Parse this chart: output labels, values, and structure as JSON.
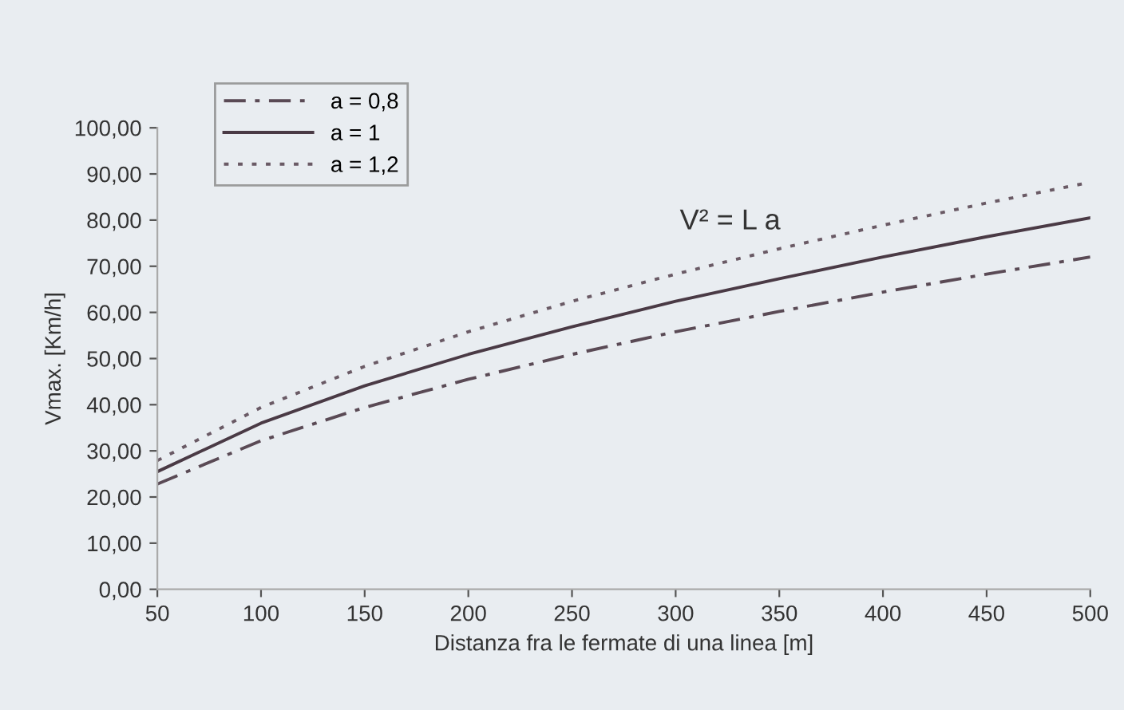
{
  "chart_data": {
    "type": "line",
    "xlabel": "Distanza fra le fermate di una linea [m]",
    "ylabel": "Vmax. [Km/h]",
    "x": [
      50,
      100,
      150,
      200,
      250,
      300,
      350,
      400,
      450,
      500
    ],
    "series": [
      {
        "name": "a = 0,8",
        "color": "#5a4a55",
        "line_style": "dashed",
        "values": [
          22.8,
          32.2,
          39.4,
          45.5,
          50.9,
          55.8,
          60.2,
          64.4,
          68.3,
          72.0
        ]
      },
      {
        "name": "a = 1",
        "color": "#4a3a45",
        "line_style": "solid",
        "values": [
          25.5,
          36.0,
          44.1,
          50.9,
          56.9,
          62.4,
          67.3,
          72.0,
          76.4,
          80.5
        ]
      },
      {
        "name": "a = 1,2",
        "color": "#6a5a65",
        "line_style": "dotted",
        "values": [
          27.9,
          39.4,
          48.3,
          55.8,
          62.4,
          68.3,
          73.8,
          78.9,
          83.7,
          88.2
        ]
      }
    ],
    "annotations": [
      "V² = L a"
    ],
    "xlim": [
      50,
      500
    ],
    "xticks": [
      50,
      100,
      150,
      200,
      250,
      300,
      350,
      400,
      450,
      500
    ],
    "ylim": [
      0,
      100
    ],
    "yticks": [
      {
        "value": 0,
        "label": "0,00"
      },
      {
        "value": 10,
        "label": "10,00"
      },
      {
        "value": 20,
        "label": "20,00"
      },
      {
        "value": 30,
        "label": "30,00"
      },
      {
        "value": 40,
        "label": "40,00"
      },
      {
        "value": 50,
        "label": "50,00"
      },
      {
        "value": 60,
        "label": "60,00"
      },
      {
        "value": 70,
        "label": "70,00"
      },
      {
        "value": 80,
        "label": "80,00"
      },
      {
        "value": 90,
        "label": "90,00"
      },
      {
        "value": 100,
        "label": "100,00"
      }
    ],
    "legend": "top left",
    "grid": false,
    "marker": "none"
  }
}
